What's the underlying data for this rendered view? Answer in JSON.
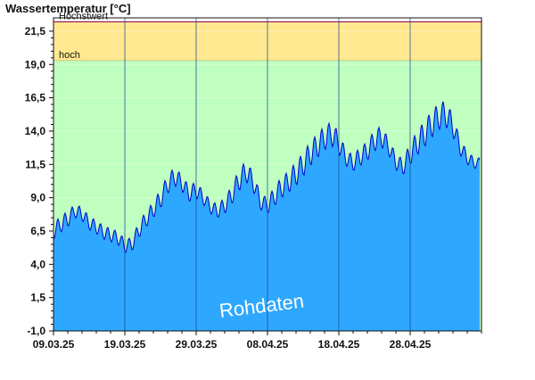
{
  "chart_data": {
    "type": "area",
    "ylabel": "Wassertemperatur [°C]",
    "ylim": [
      -1.0,
      22.5
    ],
    "y_ticks": [
      "-1,0",
      "1,5",
      "4,0",
      "6,5",
      "9,0",
      "11,5",
      "14,0",
      "16,5",
      "19,0",
      "21,5"
    ],
    "y_tick_values": [
      -1.0,
      1.5,
      4.0,
      6.5,
      9.0,
      11.5,
      14.0,
      16.5,
      19.0,
      21.5
    ],
    "x_start": "2025-03-09",
    "x_end": "2025-05-08",
    "x_ticks": [
      "09.03.25",
      "19.03.25",
      "29.03.25",
      "08.04.25",
      "18.04.25",
      "28.04.25"
    ],
    "thresholds": [
      {
        "label": "hoch",
        "from": 19.3,
        "to": 22.2,
        "color": "#ffe88f"
      },
      {
        "label": "Höchstwert",
        "value": 22.2,
        "color": "#8b0050"
      }
    ],
    "below_color": "#bfffbf",
    "series": [
      {
        "color": "#2ea8ff",
        "line_color": "#0000cc",
        "x": [
          "2025-03-09",
          "2025-03-10",
          "2025-03-11",
          "2025-03-12",
          "2025-03-13",
          "2025-03-14",
          "2025-03-15",
          "2025-03-16",
          "2025-03-17",
          "2025-03-18",
          "2025-03-19",
          "2025-03-20",
          "2025-03-21",
          "2025-03-22",
          "2025-03-23",
          "2025-03-24",
          "2025-03-25",
          "2025-03-26",
          "2025-03-27",
          "2025-03-28",
          "2025-03-29",
          "2025-03-30",
          "2025-03-31",
          "2025-04-01",
          "2025-04-02",
          "2025-04-03",
          "2025-04-04",
          "2025-04-05",
          "2025-04-06",
          "2025-04-07",
          "2025-04-08",
          "2025-04-09",
          "2025-04-10",
          "2025-04-11",
          "2025-04-12",
          "2025-04-13",
          "2025-04-14",
          "2025-04-15",
          "2025-04-16",
          "2025-04-17",
          "2025-04-18",
          "2025-04-19",
          "2025-04-20",
          "2025-04-21",
          "2025-04-22",
          "2025-04-23",
          "2025-04-24",
          "2025-04-25",
          "2025-04-26",
          "2025-04-27",
          "2025-04-28",
          "2025-04-29",
          "2025-04-30",
          "2025-05-01",
          "2025-05-02",
          "2025-05-03",
          "2025-05-04",
          "2025-05-05",
          "2025-05-06",
          "2025-05-07"
        ],
        "y": [
          6.5,
          7.0,
          7.4,
          8.0,
          7.8,
          7.1,
          6.8,
          6.4,
          6.2,
          6.0,
          5.4,
          5.5,
          6.6,
          7.4,
          8.1,
          8.9,
          10.0,
          10.6,
          10.1,
          9.3,
          9.6,
          9.0,
          8.3,
          8.0,
          8.4,
          9.2,
          10.3,
          11.0,
          10.2,
          8.7,
          8.4,
          9.1,
          9.8,
          10.2,
          10.8,
          11.5,
          12.3,
          12.9,
          13.5,
          13.8,
          13.1,
          12.0,
          11.6,
          12.1,
          12.5,
          13.3,
          13.6,
          12.8,
          11.7,
          11.3,
          12.3,
          13.1,
          13.8,
          14.5,
          15.1,
          15.3,
          14.4,
          12.8,
          12.0,
          11.6
        ],
        "amplitude": [
          0.6,
          0.6,
          0.6,
          0.5,
          0.5,
          0.5,
          0.5,
          0.5,
          0.5,
          0.5,
          0.5,
          0.5,
          0.6,
          0.6,
          0.6,
          0.7,
          0.7,
          0.7,
          0.6,
          0.6,
          0.6,
          0.5,
          0.5,
          0.5,
          0.6,
          0.7,
          0.8,
          0.8,
          0.7,
          0.6,
          0.6,
          0.7,
          0.8,
          0.8,
          0.9,
          0.9,
          0.9,
          0.9,
          0.9,
          0.9,
          0.8,
          0.6,
          0.6,
          0.7,
          0.7,
          0.8,
          0.8,
          0.6,
          0.6,
          0.6,
          0.8,
          0.9,
          1.0,
          1.0,
          1.0,
          1.0,
          0.8,
          0.6,
          0.5,
          0.4
        ]
      }
    ],
    "watermark": "Rohdaten"
  }
}
